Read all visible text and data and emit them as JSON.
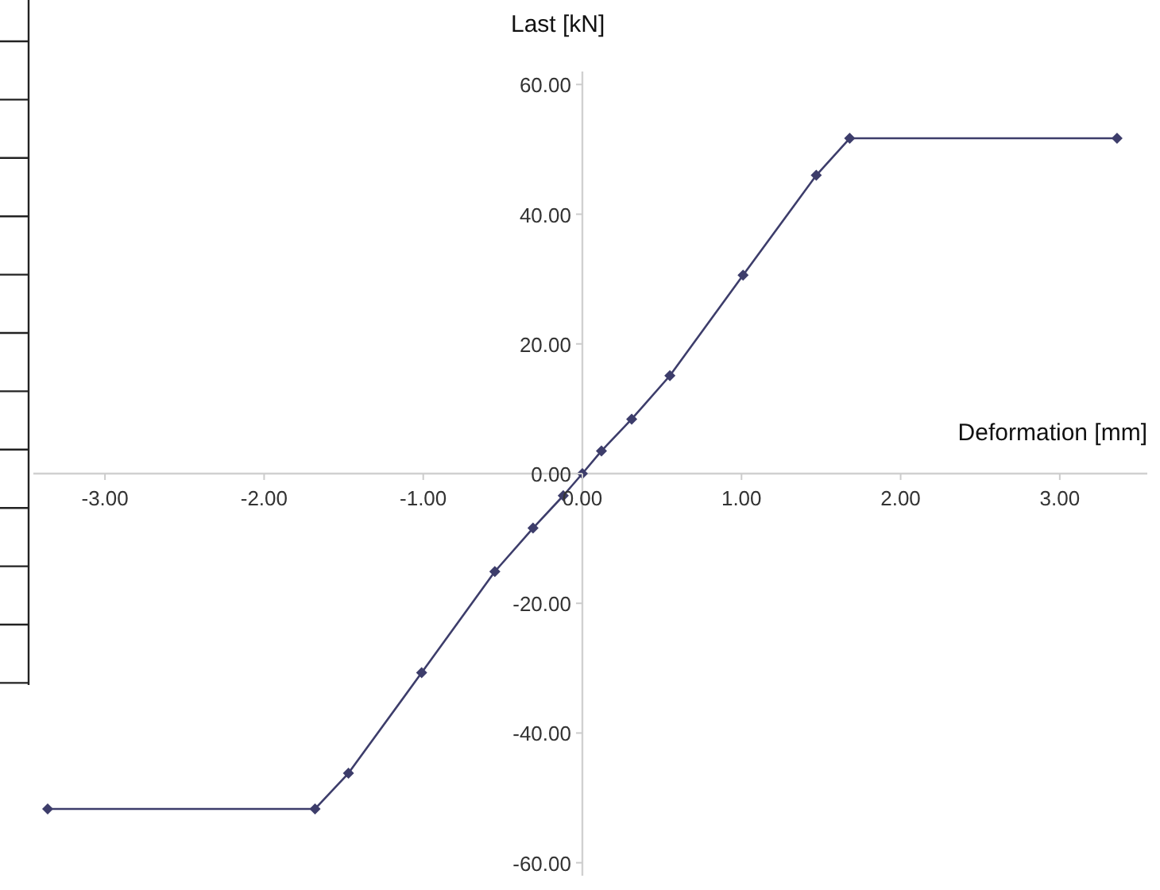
{
  "chart_data": {
    "type": "line",
    "xlabel": "Deformation [mm]",
    "ylabel": "Last [kN]",
    "x": [
      -3.36,
      -1.68,
      -1.47,
      -1.01,
      -0.55,
      -0.31,
      -0.12,
      0,
      0.12,
      0.31,
      0.55,
      1.01,
      1.47,
      1.68,
      3.36
    ],
    "series": [
      {
        "color": "#3d3d6b",
        "values": [
          -51.7,
          -51.7,
          -46.2,
          -30.7,
          -15.1,
          -8.4,
          -3.4,
          0,
          3.5,
          8.4,
          15.1,
          30.6,
          46,
          51.7,
          51.7
        ]
      }
    ],
    "xlim": [
      -3.45,
      3.55
    ],
    "ylim": [
      -62,
      62
    ],
    "xticks": [
      {
        "value": -3,
        "label": "-3.00"
      },
      {
        "value": -2,
        "label": "-2.00"
      },
      {
        "value": -1,
        "label": "-1.00"
      },
      {
        "value": 0,
        "label": "0.00"
      },
      {
        "value": 1,
        "label": "1.00"
      },
      {
        "value": 2,
        "label": "2.00"
      },
      {
        "value": 3,
        "label": "3.00"
      }
    ],
    "yticks": [
      {
        "value": -60,
        "label": "-60.00"
      },
      {
        "value": -40,
        "label": "-40.00"
      },
      {
        "value": -20,
        "label": "-20.00"
      },
      {
        "value": 0,
        "label": "0.00"
      },
      {
        "value": 20,
        "label": "20.00"
      },
      {
        "value": 40,
        "label": "40.00"
      },
      {
        "value": 60,
        "label": "60.00"
      }
    ],
    "marker": "diamond",
    "line_style": "solid"
  }
}
